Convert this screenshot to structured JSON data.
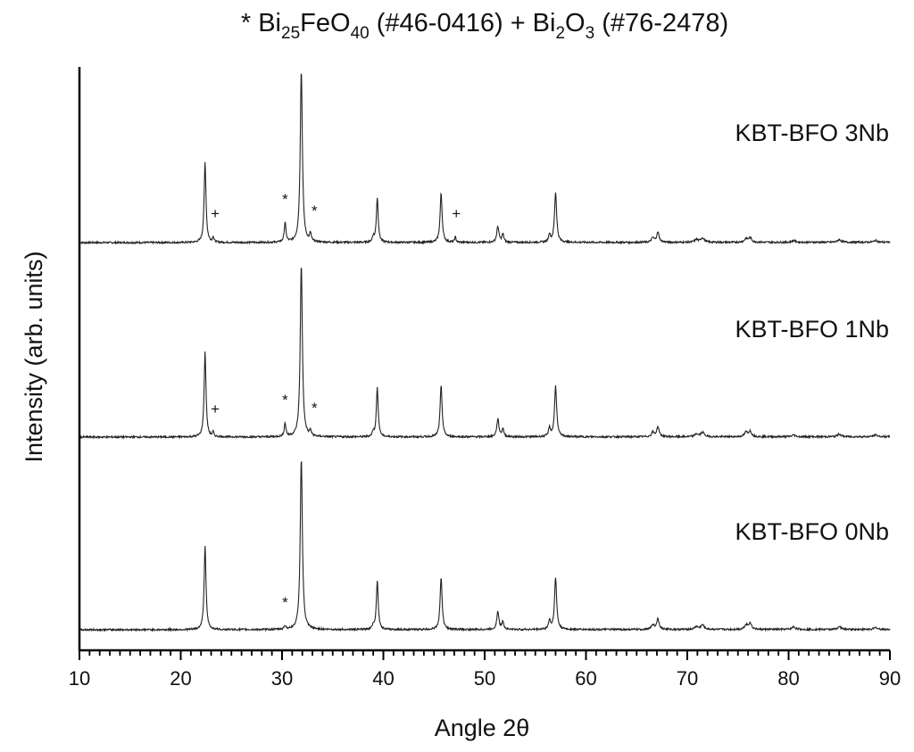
{
  "chart_data": {
    "type": "line",
    "title": {
      "parts": [
        {
          "t": "* Bi"
        },
        {
          "t": "25",
          "sub": true
        },
        {
          "t": "FeO"
        },
        {
          "t": "40",
          "sub": true
        },
        {
          "t": " (#46-0416)      + Bi"
        },
        {
          "t": "2",
          "sub": true
        },
        {
          "t": "O"
        },
        {
          "t": "3",
          "sub": true
        },
        {
          "t": " (#76-2478)"
        }
      ]
    },
    "xlabel": "Angle 2θ",
    "ylabel": "Intensity (arb. units)",
    "xlim": [
      10,
      90
    ],
    "xticks": [
      10,
      20,
      30,
      40,
      50,
      60,
      70,
      80,
      90
    ],
    "xminor_step": 1,
    "y_ticks_shown": false,
    "series": [
      {
        "name": "KBT-BFO 3Nb",
        "peaks": [
          {
            "x": 22.4,
            "h": 90,
            "w": 0.22
          },
          {
            "x": 23.2,
            "h": 6,
            "w": 0.15
          },
          {
            "x": 30.3,
            "h": 22,
            "w": 0.2
          },
          {
            "x": 31.9,
            "h": 193,
            "w": 0.25
          },
          {
            "x": 32.8,
            "h": 9,
            "w": 0.18
          },
          {
            "x": 39.0,
            "h": 6,
            "w": 0.2
          },
          {
            "x": 39.4,
            "h": 50,
            "w": 0.22
          },
          {
            "x": 45.7,
            "h": 55,
            "w": 0.24
          },
          {
            "x": 47.1,
            "h": 6,
            "w": 0.16
          },
          {
            "x": 51.3,
            "h": 18,
            "w": 0.25
          },
          {
            "x": 51.8,
            "h": 9,
            "w": 0.22
          },
          {
            "x": 56.4,
            "h": 9,
            "w": 0.22
          },
          {
            "x": 57.0,
            "h": 56,
            "w": 0.25
          },
          {
            "x": 66.6,
            "h": 5,
            "w": 0.3
          },
          {
            "x": 67.1,
            "h": 11,
            "w": 0.3
          },
          {
            "x": 70.9,
            "h": 3,
            "w": 0.4
          },
          {
            "x": 71.5,
            "h": 5,
            "w": 0.4
          },
          {
            "x": 75.8,
            "h": 4,
            "w": 0.35
          },
          {
            "x": 76.2,
            "h": 5,
            "w": 0.35
          },
          {
            "x": 80.5,
            "h": 2,
            "w": 0.4
          },
          {
            "x": 85.0,
            "h": 3,
            "w": 0.4
          },
          {
            "x": 88.6,
            "h": 2,
            "w": 0.4
          }
        ],
        "markers": [
          {
            "x": 23.4,
            "symbol": "+"
          },
          {
            "x": 30.3,
            "symbol": "*"
          },
          {
            "x": 33.2,
            "symbol": "*"
          },
          {
            "x": 47.2,
            "symbol": "+"
          }
        ]
      },
      {
        "name": "KBT-BFO 1Nb",
        "peaks": [
          {
            "x": 22.4,
            "h": 95,
            "w": 0.22
          },
          {
            "x": 23.2,
            "h": 5,
            "w": 0.15
          },
          {
            "x": 30.3,
            "h": 15,
            "w": 0.2
          },
          {
            "x": 31.9,
            "h": 193,
            "w": 0.25
          },
          {
            "x": 32.8,
            "h": 6,
            "w": 0.18
          },
          {
            "x": 39.0,
            "h": 5,
            "w": 0.2
          },
          {
            "x": 39.4,
            "h": 55,
            "w": 0.22
          },
          {
            "x": 45.7,
            "h": 57,
            "w": 0.24
          },
          {
            "x": 51.3,
            "h": 20,
            "w": 0.25
          },
          {
            "x": 51.8,
            "h": 9,
            "w": 0.22
          },
          {
            "x": 56.4,
            "h": 10,
            "w": 0.22
          },
          {
            "x": 57.0,
            "h": 57,
            "w": 0.25
          },
          {
            "x": 66.6,
            "h": 5,
            "w": 0.3
          },
          {
            "x": 67.1,
            "h": 11,
            "w": 0.3
          },
          {
            "x": 70.9,
            "h": 3,
            "w": 0.4
          },
          {
            "x": 71.5,
            "h": 5,
            "w": 0.4
          },
          {
            "x": 75.8,
            "h": 5,
            "w": 0.35
          },
          {
            "x": 76.2,
            "h": 6,
            "w": 0.35
          },
          {
            "x": 80.5,
            "h": 2,
            "w": 0.4
          },
          {
            "x": 85.0,
            "h": 3,
            "w": 0.4
          },
          {
            "x": 88.6,
            "h": 2,
            "w": 0.4
          }
        ],
        "markers": [
          {
            "x": 23.4,
            "symbol": "+"
          },
          {
            "x": 30.3,
            "symbol": "*"
          },
          {
            "x": 33.2,
            "symbol": "*"
          }
        ]
      },
      {
        "name": "KBT-BFO 0Nb",
        "peaks": [
          {
            "x": 22.4,
            "h": 94,
            "w": 0.22
          },
          {
            "x": 30.3,
            "h": 4,
            "w": 0.2
          },
          {
            "x": 31.9,
            "h": 193,
            "w": 0.25
          },
          {
            "x": 39.0,
            "h": 5,
            "w": 0.2
          },
          {
            "x": 39.4,
            "h": 55,
            "w": 0.22
          },
          {
            "x": 45.7,
            "h": 58,
            "w": 0.24
          },
          {
            "x": 51.3,
            "h": 20,
            "w": 0.25
          },
          {
            "x": 51.8,
            "h": 9,
            "w": 0.22
          },
          {
            "x": 56.4,
            "h": 10,
            "w": 0.22
          },
          {
            "x": 57.0,
            "h": 58,
            "w": 0.25
          },
          {
            "x": 66.6,
            "h": 5,
            "w": 0.3
          },
          {
            "x": 67.1,
            "h": 12,
            "w": 0.3
          },
          {
            "x": 70.9,
            "h": 3,
            "w": 0.4
          },
          {
            "x": 71.5,
            "h": 5,
            "w": 0.4
          },
          {
            "x": 75.8,
            "h": 5,
            "w": 0.35
          },
          {
            "x": 76.2,
            "h": 7,
            "w": 0.35
          },
          {
            "x": 80.5,
            "h": 3,
            "w": 0.4
          },
          {
            "x": 85.0,
            "h": 3,
            "w": 0.4
          },
          {
            "x": 88.6,
            "h": 2,
            "w": 0.4
          }
        ],
        "markers": [
          {
            "x": 30.3,
            "symbol": "*"
          }
        ]
      }
    ]
  }
}
